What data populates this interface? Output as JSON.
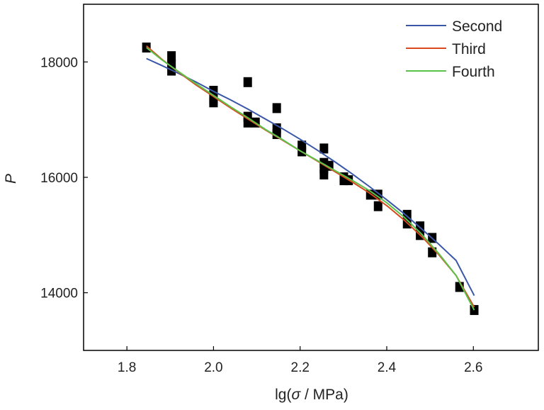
{
  "chart_data": {
    "type": "scatter",
    "xlabel_parts": {
      "prefix": "lg(",
      "symbol": "σ",
      "suffix": " / MPa)"
    },
    "ylabel": "P",
    "xlim": [
      1.7,
      2.75
    ],
    "ylim": [
      13000,
      19000
    ],
    "x_ticks": [
      "1.8",
      "2.0",
      "2.2",
      "2.4",
      "2.6"
    ],
    "y_ticks": [
      "14000",
      "16000",
      "18000"
    ],
    "legend_position": "top-right",
    "points": [
      {
        "x": 1.845,
        "y": 18250
      },
      {
        "x": 1.903,
        "y": 18100
      },
      {
        "x": 1.903,
        "y": 17950
      },
      {
        "x": 1.903,
        "y": 17850
      },
      {
        "x": 2.0,
        "y": 17500
      },
      {
        "x": 2.0,
        "y": 17350
      },
      {
        "x": 2.0,
        "y": 17300
      },
      {
        "x": 2.079,
        "y": 17650
      },
      {
        "x": 2.079,
        "y": 17050
      },
      {
        "x": 2.079,
        "y": 16950
      },
      {
        "x": 2.097,
        "y": 16950
      },
      {
        "x": 2.146,
        "y": 17200
      },
      {
        "x": 2.146,
        "y": 16850
      },
      {
        "x": 2.146,
        "y": 16750
      },
      {
        "x": 2.204,
        "y": 16550
      },
      {
        "x": 2.204,
        "y": 16450
      },
      {
        "x": 2.255,
        "y": 16500
      },
      {
        "x": 2.255,
        "y": 16250
      },
      {
        "x": 2.255,
        "y": 16150
      },
      {
        "x": 2.255,
        "y": 16050
      },
      {
        "x": 2.267,
        "y": 16200
      },
      {
        "x": 2.301,
        "y": 16000
      },
      {
        "x": 2.301,
        "y": 15950
      },
      {
        "x": 2.312,
        "y": 15950
      },
      {
        "x": 2.362,
        "y": 15700
      },
      {
        "x": 2.38,
        "y": 15700
      },
      {
        "x": 2.38,
        "y": 15500
      },
      {
        "x": 2.447,
        "y": 15350
      },
      {
        "x": 2.447,
        "y": 15200
      },
      {
        "x": 2.477,
        "y": 15150
      },
      {
        "x": 2.477,
        "y": 15000
      },
      {
        "x": 2.505,
        "y": 14950
      },
      {
        "x": 2.505,
        "y": 14700
      },
      {
        "x": 2.568,
        "y": 14100
      },
      {
        "x": 2.602,
        "y": 13700
      }
    ],
    "series": [
      {
        "name": "Second",
        "color": "#3a56a6",
        "x": [
          1.845,
          1.88,
          1.92,
          1.96,
          2.0,
          2.04,
          2.08,
          2.12,
          2.16,
          2.2,
          2.24,
          2.28,
          2.32,
          2.36,
          2.4,
          2.44,
          2.48,
          2.52,
          2.56,
          2.602
        ],
        "y": [
          18060,
          17940,
          17800,
          17650,
          17490,
          17340,
          17180,
          17010,
          16840,
          16660,
          16470,
          16270,
          16060,
          15840,
          15610,
          15370,
          15110,
          14840,
          14560,
          13950
        ]
      },
      {
        "name": "Third",
        "color": "#d84a1e",
        "x": [
          1.845,
          1.88,
          1.92,
          1.96,
          2.0,
          2.04,
          2.08,
          2.12,
          2.16,
          2.2,
          2.24,
          2.28,
          2.32,
          2.36,
          2.4,
          2.44,
          2.48,
          2.52,
          2.56,
          2.602
        ],
        "y": [
          18280,
          18050,
          17820,
          17600,
          17400,
          17200,
          17010,
          16820,
          16640,
          16460,
          16280,
          16100,
          15920,
          15730,
          15510,
          15260,
          14980,
          14660,
          14300,
          13750
        ]
      },
      {
        "name": "Fourth",
        "color": "#5cc34a",
        "x": [
          1.845,
          1.88,
          1.92,
          1.96,
          2.0,
          2.04,
          2.08,
          2.12,
          2.16,
          2.2,
          2.24,
          2.28,
          2.32,
          2.36,
          2.4,
          2.44,
          2.48,
          2.52,
          2.56,
          2.602
        ],
        "y": [
          18250,
          18040,
          17830,
          17620,
          17420,
          17220,
          17030,
          16830,
          16650,
          16460,
          16290,
          16120,
          15950,
          15770,
          15560,
          15310,
          15020,
          14680,
          14300,
          13700
        ]
      }
    ]
  }
}
